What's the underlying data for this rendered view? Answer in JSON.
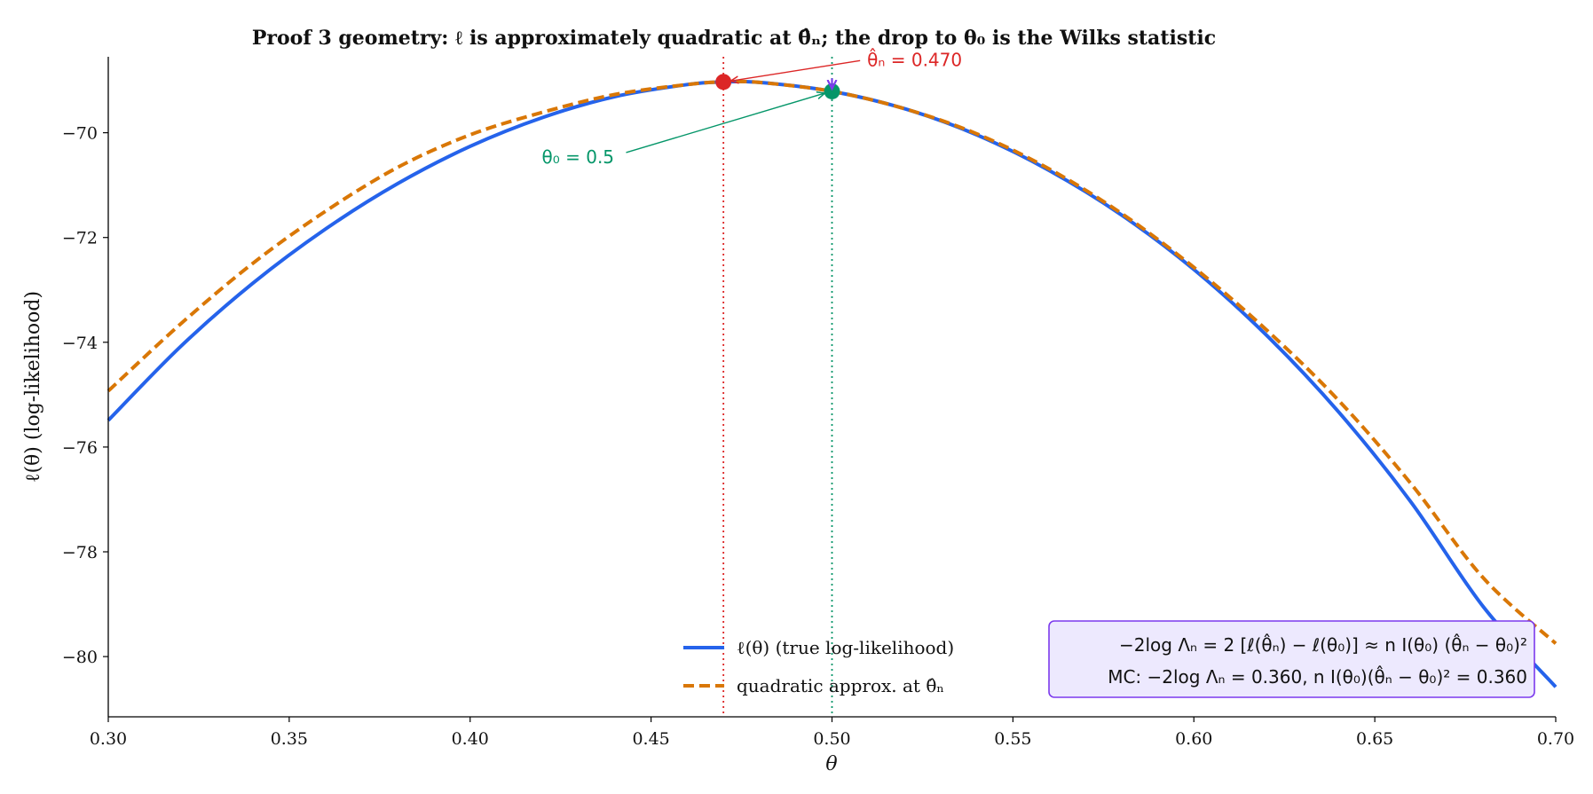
{
  "chart_data": {
    "type": "line",
    "title": "Proof 3 geometry: ℓ is approximately quadratic at θ̂ₙ; the drop to θ₀ is the Wilks statistic",
    "xlabel": "θ",
    "ylabel": "ℓ(θ)  (log-likelihood)",
    "xlim": [
      0.3,
      0.7
    ],
    "ylim": [
      -81.15,
      -68.55
    ],
    "xticks": [
      0.3,
      0.35,
      0.4,
      0.45,
      0.5,
      0.55,
      0.6,
      0.65,
      0.7
    ],
    "xtick_labels": [
      "0.30",
      "0.35",
      "0.40",
      "0.45",
      "0.50",
      "0.55",
      "0.60",
      "0.65",
      "0.70"
    ],
    "yticks": [
      -80,
      -78,
      -76,
      -74,
      -72,
      -70
    ],
    "ytick_labels": [
      "−80",
      "−78",
      "−76",
      "−74",
      "−72",
      "−70"
    ],
    "grid": false,
    "legend_position": "bottom-center",
    "series": [
      {
        "name": "ℓ(θ)  (true log-likelihood)",
        "style": "solid",
        "color": "#2563eb",
        "x": [
          0.3,
          0.32,
          0.34,
          0.36,
          0.38,
          0.4,
          0.42,
          0.44,
          0.46,
          0.47,
          0.48,
          0.5,
          0.52,
          0.54,
          0.56,
          0.58,
          0.6,
          0.62,
          0.64,
          0.66,
          0.68,
          0.7
        ],
        "y": [
          -75.49,
          -74.08,
          -72.87,
          -71.84,
          -70.97,
          -70.26,
          -69.71,
          -69.31,
          -69.08,
          -69.03,
          -69.04,
          -69.21,
          -69.54,
          -70.04,
          -70.72,
          -71.57,
          -72.61,
          -73.86,
          -75.33,
          -77.05,
          -79.05,
          -80.58
        ]
      },
      {
        "name": "quadratic approx. at θ̂ₙ",
        "style": "dashed",
        "color": "#d97706",
        "x": [
          0.3,
          0.32,
          0.34,
          0.36,
          0.38,
          0.4,
          0.42,
          0.44,
          0.46,
          0.47,
          0.48,
          0.5,
          0.52,
          0.54,
          0.56,
          0.58,
          0.6,
          0.62,
          0.64,
          0.66,
          0.68,
          0.7
        ],
        "y": [
          -74.93,
          -73.65,
          -72.49,
          -71.5,
          -70.66,
          -70.04,
          -69.61,
          -69.27,
          -69.08,
          -69.03,
          -69.04,
          -69.21,
          -69.54,
          -70.02,
          -70.69,
          -71.54,
          -72.57,
          -73.76,
          -75.11,
          -76.7,
          -78.5,
          -79.75
        ]
      }
    ],
    "points": [
      {
        "label": "θ̂ₙ = 0.470",
        "x": 0.47,
        "y": -69.03,
        "color": "#dc2626"
      },
      {
        "label": "θ₀ = 0.5",
        "x": 0.5,
        "y": -69.21,
        "color": "#059669"
      }
    ],
    "vlines": [
      {
        "x": 0.47,
        "color": "#dc2626"
      },
      {
        "x": 0.5,
        "color": "#059669"
      }
    ],
    "annotation_box": {
      "line1": "−2log Λₙ = 2 [ℓ(θ̂ₙ) − ℓ(θ₀)] ≈ n I(θ₀) (θ̂ₙ − θ₀)²",
      "line2": "MC: −2log Λₙ = 0.360,     n I(θ₀)(θ̂ₙ − θ₀)² = 0.360",
      "face_color": "#ede9fe",
      "edge_color": "#7c3aed"
    },
    "drop_arrow_color": "#7c3aed"
  }
}
